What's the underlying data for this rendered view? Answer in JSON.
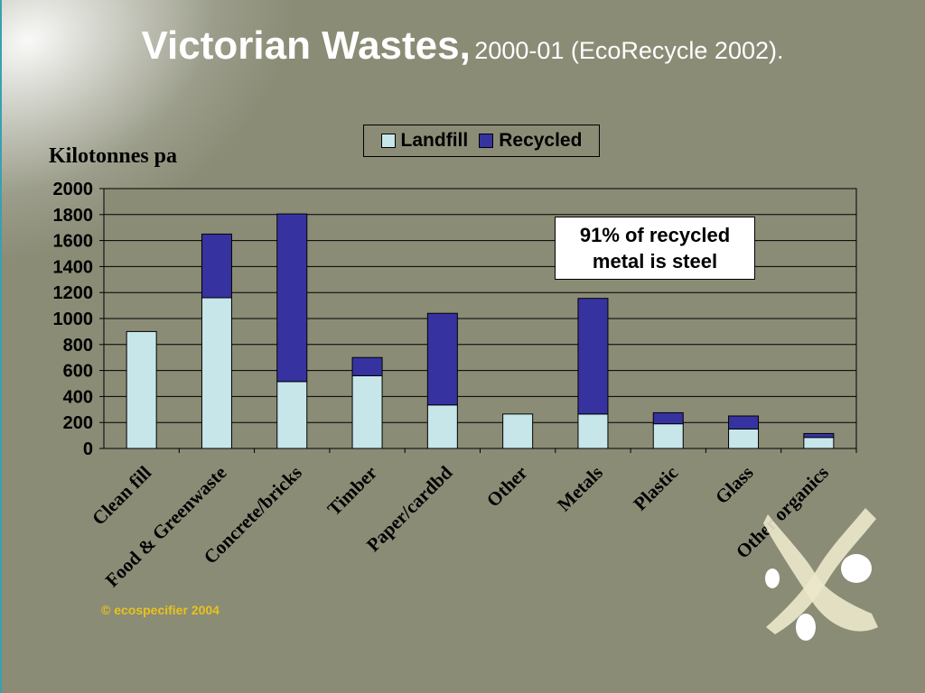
{
  "title": {
    "main": "Victorian Wastes,",
    "sub": "2000-01 (EcoRecycle 2002)."
  },
  "copyright": "© ecospecifier 2004",
  "annotation": {
    "line1": "91% of recycled",
    "line2": "metal is steel"
  },
  "colors": {
    "landfill": "#c6e6ea",
    "recycled": "#3633a0",
    "background": "#8a8c76"
  },
  "chart_data": {
    "type": "bar",
    "stacked": true,
    "ylabel": "Kilotonnes pa",
    "ylim": [
      0,
      2000
    ],
    "yticks": [
      "0",
      "200",
      "400",
      "600",
      "800",
      "1000",
      "1200",
      "1400",
      "1600",
      "1800",
      "2000"
    ],
    "grid": true,
    "legend_position": "top-center",
    "categories": [
      "Clean fill",
      "Food & Greenwaste",
      "Concrete/bricks",
      "Timber",
      "Paper/cardbd",
      "Other",
      "Metals",
      "Plastic",
      "Glass",
      "Other organics"
    ],
    "series": [
      {
        "name": "Landfill",
        "values": [
          900,
          1160,
          515,
          560,
          335,
          265,
          265,
          190,
          150,
          85
        ]
      },
      {
        "name": "Recycled",
        "values": [
          0,
          490,
          1290,
          140,
          705,
          0,
          890,
          85,
          100,
          30
        ]
      }
    ]
  }
}
